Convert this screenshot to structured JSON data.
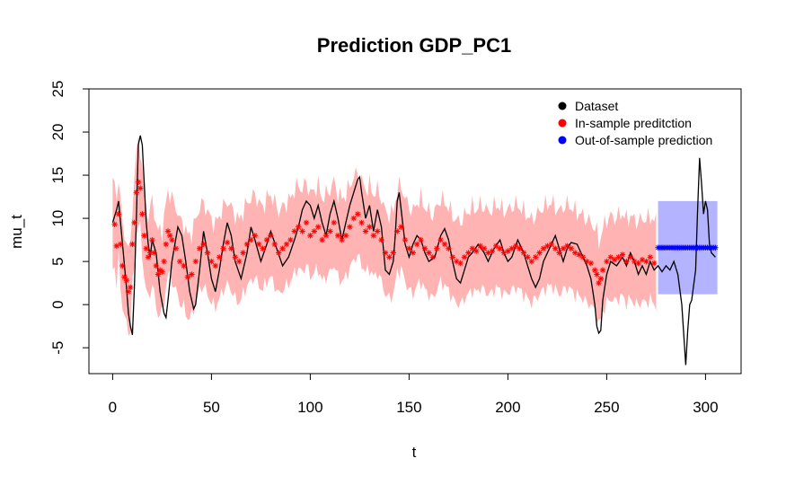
{
  "chart_data": {
    "type": "line",
    "title": "Prediction GDP_PC1",
    "xlabel": "t",
    "ylabel": "mu_t",
    "xlim": [
      -12,
      318
    ],
    "ylim": [
      -8,
      25
    ],
    "x_ticks": [
      0,
      50,
      100,
      150,
      200,
      250,
      300
    ],
    "y_ticks": [
      -5,
      0,
      5,
      10,
      15,
      20,
      25
    ],
    "grid": false,
    "legend_position": "top-right",
    "legend": [
      {
        "label": "Dataset",
        "color": "#000000"
      },
      {
        "label": "In-sample preditction",
        "color": "#ff0000"
      },
      {
        "label": "Out-of-sample prediction",
        "color": "#0000ff"
      }
    ],
    "colors": {
      "dataset": "#000000",
      "in_sample_points": "#ff0000",
      "in_sample_band": "#ffb3b3",
      "out_sample_points": "#0000ff",
      "out_sample_band": "#b3b3ff"
    },
    "dataset_series": {
      "name": "Dataset",
      "points": [
        [
          0,
          9.5
        ],
        [
          2,
          11.0
        ],
        [
          3,
          12.0
        ],
        [
          5,
          7.0
        ],
        [
          7,
          2.0
        ],
        [
          8,
          -1.0
        ],
        [
          9,
          -2.5
        ],
        [
          10,
          -3.5
        ],
        [
          11,
          2.0
        ],
        [
          12,
          10.0
        ],
        [
          13,
          18.5
        ],
        [
          14,
          19.6
        ],
        [
          15,
          18.5
        ],
        [
          16,
          14.0
        ],
        [
          17,
          9.5
        ],
        [
          18,
          7.0
        ],
        [
          19,
          5.5
        ],
        [
          20,
          7.5
        ],
        [
          22,
          6.0
        ],
        [
          24,
          1.5
        ],
        [
          26,
          -1.0
        ],
        [
          27,
          -1.5
        ],
        [
          28,
          0.5
        ],
        [
          30,
          5.0
        ],
        [
          33,
          9.0
        ],
        [
          35,
          8.0
        ],
        [
          37,
          5.0
        ],
        [
          39,
          1.5
        ],
        [
          41,
          -0.5
        ],
        [
          42,
          0.0
        ],
        [
          44,
          4.0
        ],
        [
          46,
          8.5
        ],
        [
          48,
          6.0
        ],
        [
          50,
          3.0
        ],
        [
          52,
          1.5
        ],
        [
          54,
          4.0
        ],
        [
          56,
          7.0
        ],
        [
          58,
          9.5
        ],
        [
          60,
          8.0
        ],
        [
          62,
          5.0
        ],
        [
          65,
          3.0
        ],
        [
          68,
          6.0
        ],
        [
          70,
          9.0
        ],
        [
          72,
          7.5
        ],
        [
          75,
          5.0
        ],
        [
          78,
          7.0
        ],
        [
          80,
          8.5
        ],
        [
          83,
          6.5
        ],
        [
          86,
          4.5
        ],
        [
          89,
          5.5
        ],
        [
          92,
          7.5
        ],
        [
          94,
          9.0
        ],
        [
          96,
          11.0
        ],
        [
          98,
          12.0
        ],
        [
          100,
          11.5
        ],
        [
          102,
          10.0
        ],
        [
          104,
          11.5
        ],
        [
          106,
          9.5
        ],
        [
          108,
          8.0
        ],
        [
          110,
          10.5
        ],
        [
          112,
          12.0
        ],
        [
          114,
          10.0
        ],
        [
          116,
          7.5
        ],
        [
          118,
          9.5
        ],
        [
          120,
          11.5
        ],
        [
          122,
          13.0
        ],
        [
          124,
          14.5
        ],
        [
          125,
          14.8
        ],
        [
          126,
          13.0
        ],
        [
          128,
          10.0
        ],
        [
          130,
          11.5
        ],
        [
          132,
          8.5
        ],
        [
          134,
          11.0
        ],
        [
          136,
          9.0
        ],
        [
          138,
          4.0
        ],
        [
          140,
          3.5
        ],
        [
          142,
          5.0
        ],
        [
          143,
          8.0
        ],
        [
          144,
          12.0
        ],
        [
          145,
          13.0
        ],
        [
          146,
          11.0
        ],
        [
          148,
          7.0
        ],
        [
          150,
          5.5
        ],
        [
          152,
          7.0
        ],
        [
          154,
          8.0
        ],
        [
          156,
          7.5
        ],
        [
          158,
          6.0
        ],
        [
          160,
          5.0
        ],
        [
          163,
          5.5
        ],
        [
          166,
          8.0
        ],
        [
          168,
          8.8
        ],
        [
          170,
          7.5
        ],
        [
          172,
          5.0
        ],
        [
          174,
          3.0
        ],
        [
          176,
          2.5
        ],
        [
          178,
          4.0
        ],
        [
          180,
          5.5
        ],
        [
          182,
          6.0
        ],
        [
          185,
          7.0
        ],
        [
          188,
          6.0
        ],
        [
          190,
          5.0
        ],
        [
          193,
          6.5
        ],
        [
          196,
          7.5
        ],
        [
          198,
          6.0
        ],
        [
          200,
          5.0
        ],
        [
          202,
          5.5
        ],
        [
          205,
          7.5
        ],
        [
          208,
          6.0
        ],
        [
          210,
          4.5
        ],
        [
          212,
          3.0
        ],
        [
          214,
          2.0
        ],
        [
          216,
          3.0
        ],
        [
          218,
          5.0
        ],
        [
          221,
          6.5
        ],
        [
          224,
          8.0
        ],
        [
          226,
          6.5
        ],
        [
          228,
          5.0
        ],
        [
          230,
          6.5
        ],
        [
          232,
          7.2
        ],
        [
          235,
          7.0
        ],
        [
          237,
          6.0
        ],
        [
          240,
          4.5
        ],
        [
          242,
          3.0
        ],
        [
          244,
          0.0
        ],
        [
          245,
          -2.5
        ],
        [
          246,
          -3.3
        ],
        [
          247,
          -3.0
        ],
        [
          248,
          0.5
        ],
        [
          250,
          3.5
        ],
        [
          252,
          5.0
        ],
        [
          255,
          4.5
        ],
        [
          258,
          5.5
        ],
        [
          260,
          4.5
        ],
        [
          262,
          6.0
        ],
        [
          264,
          5.0
        ],
        [
          266,
          3.5
        ],
        [
          268,
          4.5
        ],
        [
          270,
          3.5
        ],
        [
          272,
          5.0
        ],
        [
          274,
          4.0
        ],
        [
          276,
          4.5
        ],
        [
          278,
          3.8
        ],
        [
          280,
          4.5
        ],
        [
          282,
          4.0
        ],
        [
          284,
          5.0
        ],
        [
          286,
          3.5
        ],
        [
          288,
          0.0
        ],
        [
          290,
          -7.0
        ],
        [
          291,
          -3.0
        ],
        [
          292,
          0.0
        ],
        [
          293,
          0.5
        ],
        [
          295,
          4.0
        ],
        [
          296,
          11.0
        ],
        [
          297,
          17.0
        ],
        [
          298,
          14.0
        ],
        [
          299,
          10.5
        ],
        [
          300,
          12.0
        ],
        [
          301,
          11.0
        ],
        [
          302,
          7.0
        ],
        [
          303,
          6.0
        ],
        [
          305,
          5.5
        ]
      ]
    },
    "in_sample_series": {
      "name": "In-sample preditction",
      "points": [
        [
          1,
          9.3
        ],
        [
          2,
          6.8
        ],
        [
          3,
          10.5
        ],
        [
          4,
          7.0
        ],
        [
          5,
          4.5
        ],
        [
          6,
          3.2
        ],
        [
          7,
          2.8
        ],
        [
          8,
          1.5
        ],
        [
          9,
          2.0
        ],
        [
          10,
          7.0
        ],
        [
          11,
          9.5
        ],
        [
          12,
          13.0
        ],
        [
          13,
          14.2
        ],
        [
          14,
          13.5
        ],
        [
          15,
          10.5
        ],
        [
          16,
          8.0
        ],
        [
          17,
          6.5
        ],
        [
          18,
          5.5
        ],
        [
          19,
          6.0
        ],
        [
          20,
          7.5
        ],
        [
          21,
          6.0
        ],
        [
          22,
          4.5
        ],
        [
          23,
          3.5
        ],
        [
          24,
          4.0
        ],
        [
          25,
          3.8
        ],
        [
          26,
          5.0
        ],
        [
          27,
          7.0
        ],
        [
          28,
          8.5
        ],
        [
          29,
          8.0
        ],
        [
          30,
          7.5
        ],
        [
          32,
          6.5
        ],
        [
          34,
          5.0
        ],
        [
          36,
          4.5
        ],
        [
          38,
          3.2
        ],
        [
          40,
          3.5
        ],
        [
          42,
          5.0
        ],
        [
          44,
          6.5
        ],
        [
          46,
          7.0
        ],
        [
          48,
          6.0
        ],
        [
          50,
          5.0
        ],
        [
          52,
          4.5
        ],
        [
          54,
          5.5
        ],
        [
          56,
          6.5
        ],
        [
          58,
          7.2
        ],
        [
          60,
          6.5
        ],
        [
          62,
          5.5
        ],
        [
          64,
          5.0
        ],
        [
          66,
          6.0
        ],
        [
          68,
          7.0
        ],
        [
          70,
          7.5
        ],
        [
          72,
          8.0
        ],
        [
          74,
          7.0
        ],
        [
          76,
          6.5
        ],
        [
          78,
          7.5
        ],
        [
          80,
          8.0
        ],
        [
          82,
          7.0
        ],
        [
          84,
          6.0
        ],
        [
          86,
          6.5
        ],
        [
          88,
          7.0
        ],
        [
          90,
          7.5
        ],
        [
          92,
          8.5
        ],
        [
          94,
          9.0
        ],
        [
          96,
          8.5
        ],
        [
          98,
          9.5
        ],
        [
          100,
          8.0
        ],
        [
          102,
          8.5
        ],
        [
          104,
          9.0
        ],
        [
          106,
          7.5
        ],
        [
          108,
          8.0
        ],
        [
          110,
          8.5
        ],
        [
          112,
          9.5
        ],
        [
          114,
          8.0
        ],
        [
          116,
          7.5
        ],
        [
          118,
          8.0
        ],
        [
          120,
          9.0
        ],
        [
          122,
          10.0
        ],
        [
          124,
          10.5
        ],
        [
          126,
          9.5
        ],
        [
          128,
          8.5
        ],
        [
          130,
          9.0
        ],
        [
          132,
          8.0
        ],
        [
          134,
          8.5
        ],
        [
          136,
          7.5
        ],
        [
          138,
          6.0
        ],
        [
          140,
          5.5
        ],
        [
          142,
          6.0
        ],
        [
          144,
          8.5
        ],
        [
          146,
          9.0
        ],
        [
          148,
          7.5
        ],
        [
          150,
          6.5
        ],
        [
          152,
          6.0
        ],
        [
          154,
          7.0
        ],
        [
          156,
          7.5
        ],
        [
          158,
          6.5
        ],
        [
          160,
          6.0
        ],
        [
          162,
          5.5
        ],
        [
          164,
          6.5
        ],
        [
          166,
          7.5
        ],
        [
          168,
          7.0
        ],
        [
          170,
          6.5
        ],
        [
          172,
          5.5
        ],
        [
          174,
          5.0
        ],
        [
          176,
          4.8
        ],
        [
          178,
          5.5
        ],
        [
          180,
          6.0
        ],
        [
          182,
          6.5
        ],
        [
          184,
          6.2
        ],
        [
          186,
          6.8
        ],
        [
          188,
          6.5
        ],
        [
          190,
          6.0
        ],
        [
          192,
          6.2
        ],
        [
          194,
          6.8
        ],
        [
          196,
          6.5
        ],
        [
          198,
          6.0
        ],
        [
          200,
          6.2
        ],
        [
          202,
          6.5
        ],
        [
          204,
          6.8
        ],
        [
          206,
          6.5
        ],
        [
          208,
          6.0
        ],
        [
          210,
          5.5
        ],
        [
          212,
          5.0
        ],
        [
          214,
          5.5
        ],
        [
          216,
          6.0
        ],
        [
          218,
          6.5
        ],
        [
          220,
          6.8
        ],
        [
          222,
          7.0
        ],
        [
          224,
          6.5
        ],
        [
          226,
          6.0
        ],
        [
          228,
          6.5
        ],
        [
          230,
          6.8
        ],
        [
          232,
          6.5
        ],
        [
          234,
          6.0
        ],
        [
          236,
          5.8
        ],
        [
          238,
          5.5
        ],
        [
          240,
          5.0
        ],
        [
          242,
          4.8
        ],
        [
          244,
          4.0
        ],
        [
          245,
          3.5
        ],
        [
          246,
          2.5
        ],
        [
          247,
          3.0
        ],
        [
          248,
          4.0
        ],
        [
          250,
          5.0
        ],
        [
          252,
          5.5
        ],
        [
          254,
          5.2
        ],
        [
          256,
          5.5
        ],
        [
          258,
          5.8
        ],
        [
          260,
          5.0
        ],
        [
          262,
          5.5
        ],
        [
          264,
          5.0
        ],
        [
          266,
          4.8
        ],
        [
          268,
          5.2
        ],
        [
          270,
          5.0
        ],
        [
          272,
          5.5
        ],
        [
          274,
          4.8
        ]
      ]
    },
    "in_sample_band": {
      "x_range": [
        0,
        275
      ],
      "half_width": 4.8
    },
    "out_sample_series": {
      "name": "Out-of-sample prediction",
      "x_range": [
        276,
        305
      ],
      "value": 6.6
    },
    "out_sample_band": {
      "x_range": [
        276,
        306
      ],
      "lower": 1.2,
      "upper": 12.0
    }
  }
}
